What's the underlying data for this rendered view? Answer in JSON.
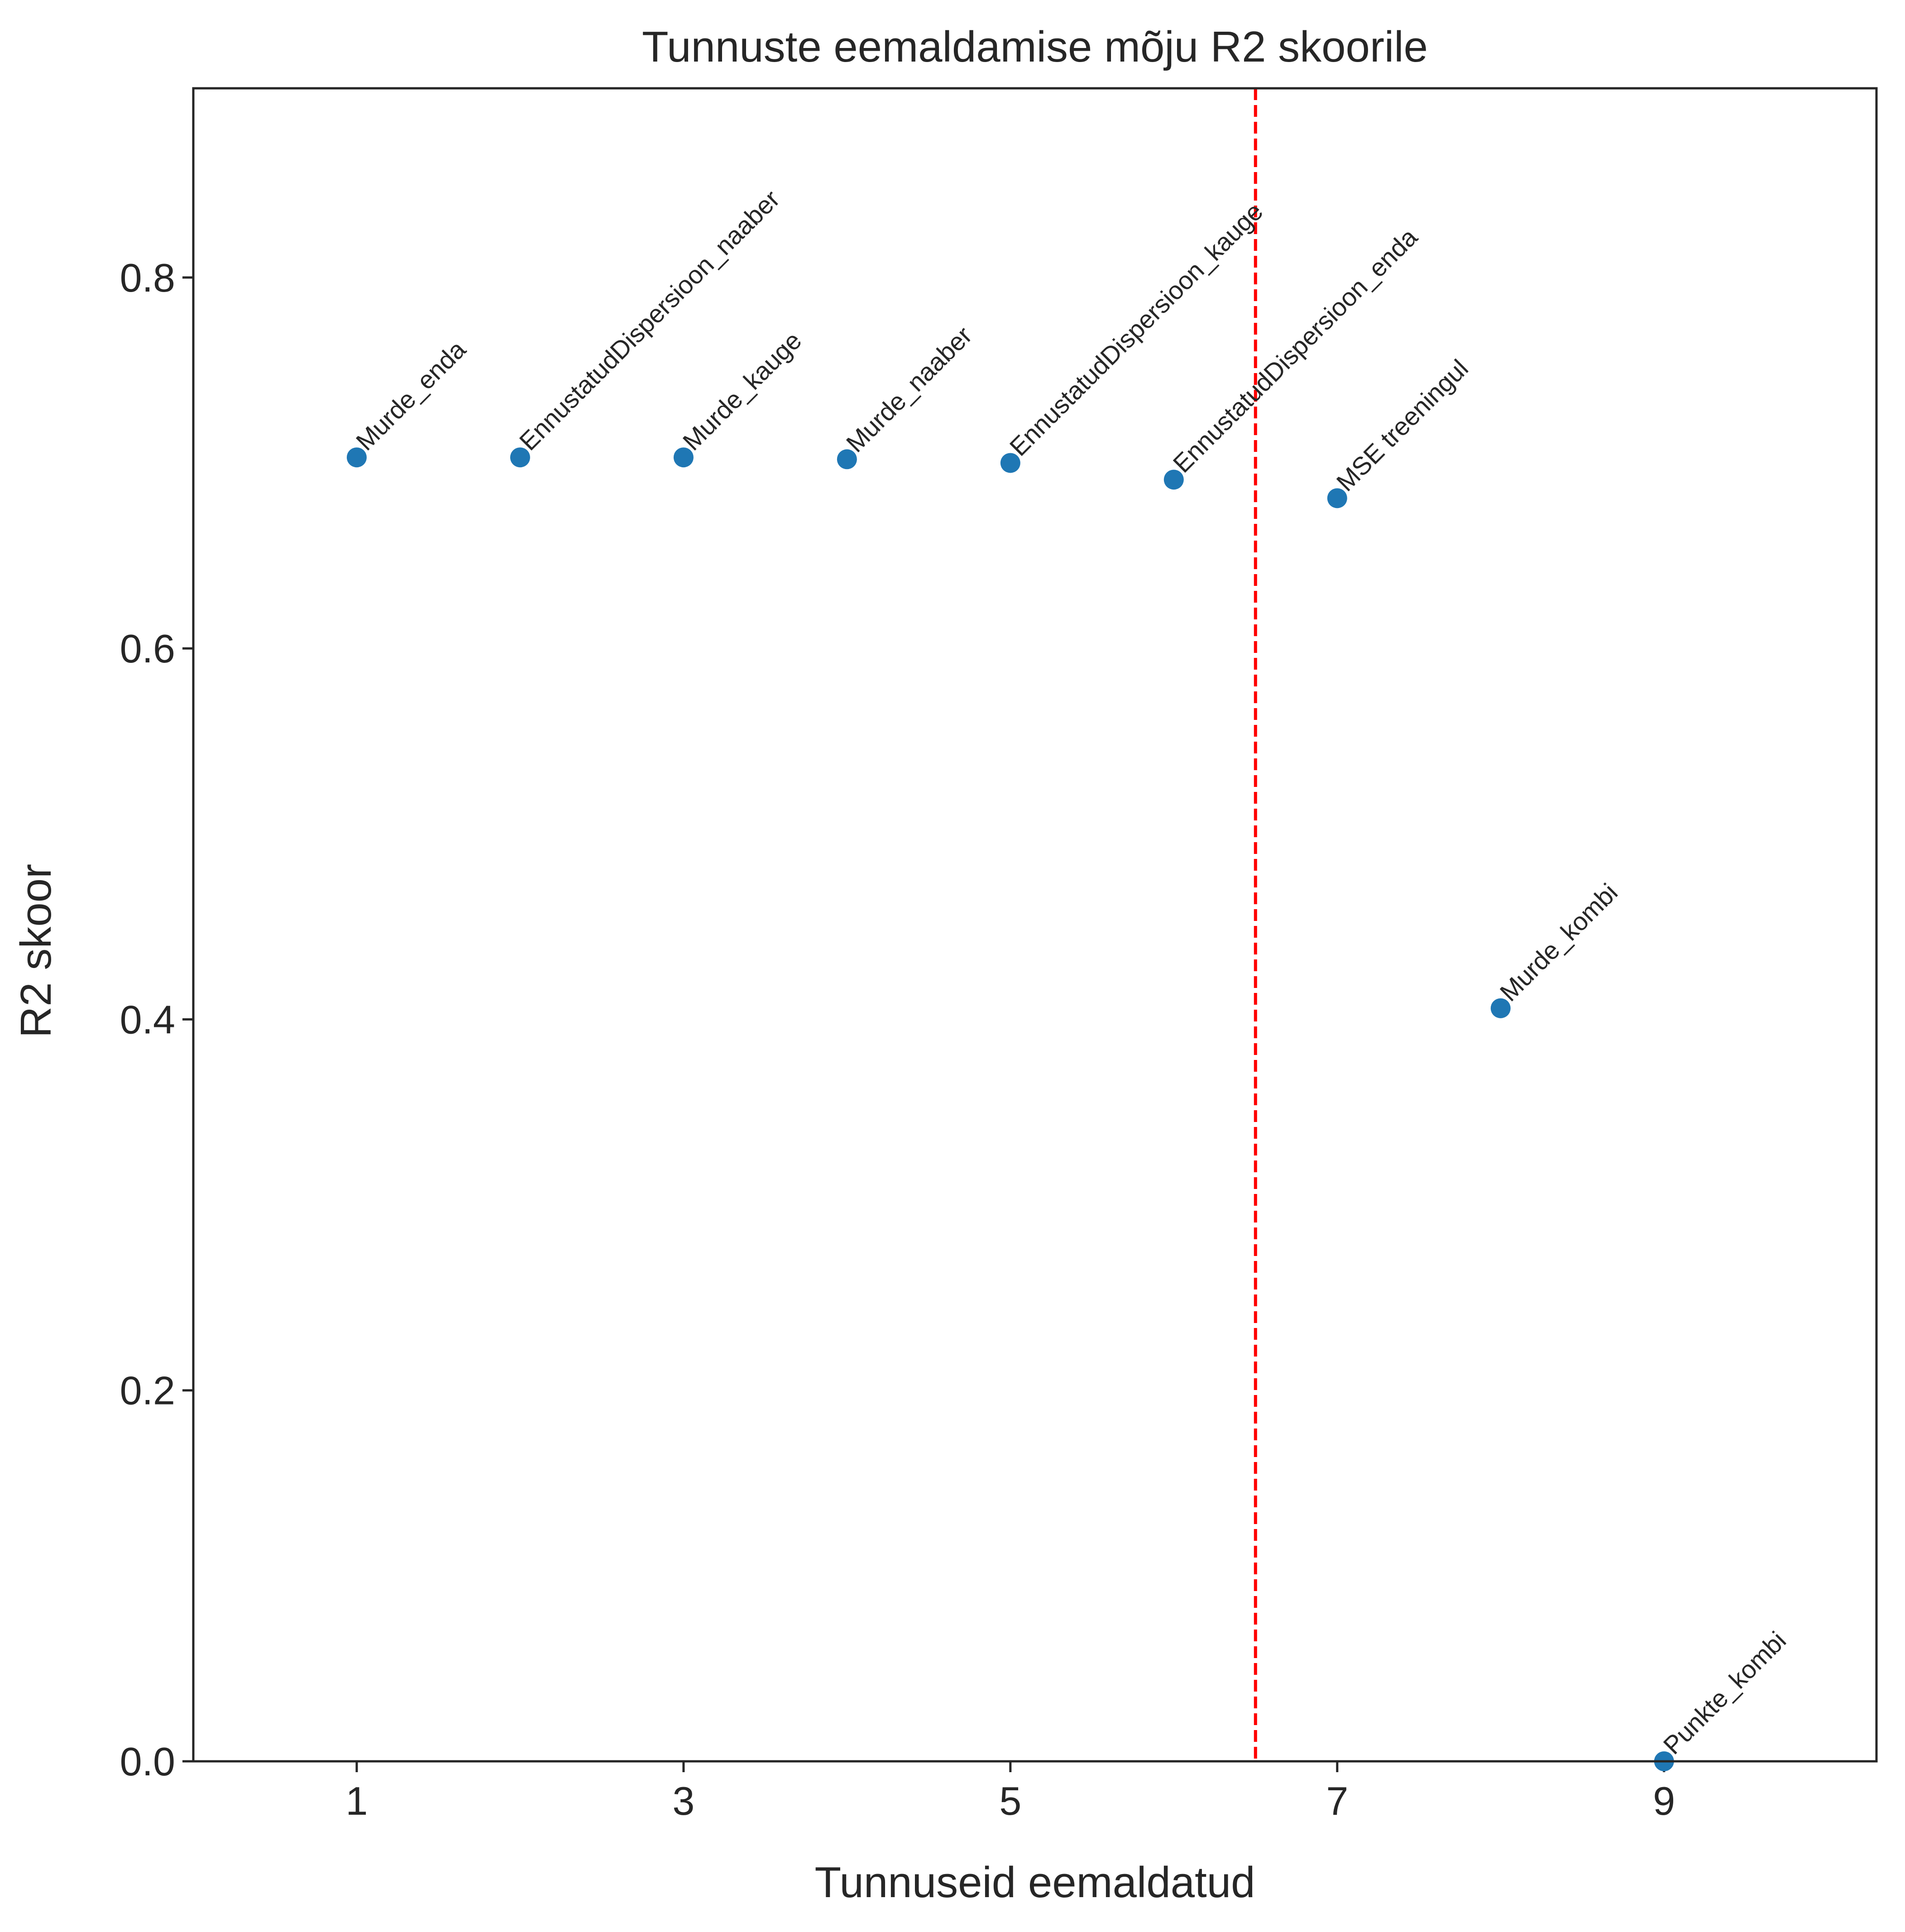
{
  "chart_data": {
    "type": "scatter",
    "title": "Tunnuste eemaldamise mõju R2 skoorile",
    "xlabel": "Tunnuseid eemaldatud",
    "ylabel": "R2 skoor",
    "xlim": [
      0,
      10.3
    ],
    "ylim": [
      0,
      0.902
    ],
    "xticks": [
      1,
      3,
      5,
      7,
      9
    ],
    "yticks": [
      0.0,
      0.2,
      0.4,
      0.6,
      0.8
    ],
    "ytick_labels": [
      "0.0",
      "0.2",
      "0.4",
      "0.6",
      "0.8"
    ],
    "grid": false,
    "legend": "none",
    "marker_color": "#1f77b4",
    "points": [
      {
        "x": 1,
        "y": 0.703,
        "label": "Murde_enda"
      },
      {
        "x": 2,
        "y": 0.703,
        "label": "EnnustatudDispersioon_naaber"
      },
      {
        "x": 3,
        "y": 0.703,
        "label": "Murde_kauge"
      },
      {
        "x": 4,
        "y": 0.702,
        "label": "Murde_naaber"
      },
      {
        "x": 5,
        "y": 0.7,
        "label": "EnnustatudDispersioon_kauge"
      },
      {
        "x": 6,
        "y": 0.691,
        "label": "EnnustatudDispersioon_enda"
      },
      {
        "x": 7,
        "y": 0.681,
        "label": "MSE treeningul"
      },
      {
        "x": 8,
        "y": 0.406,
        "label": "Murde_kombi"
      },
      {
        "x": 9,
        "y": 0.0,
        "label": "Punkte_kombi"
      }
    ],
    "reference_line": {
      "orientation": "vertical",
      "x": 6.5,
      "style": "dashed",
      "color": "#ff0000"
    }
  }
}
